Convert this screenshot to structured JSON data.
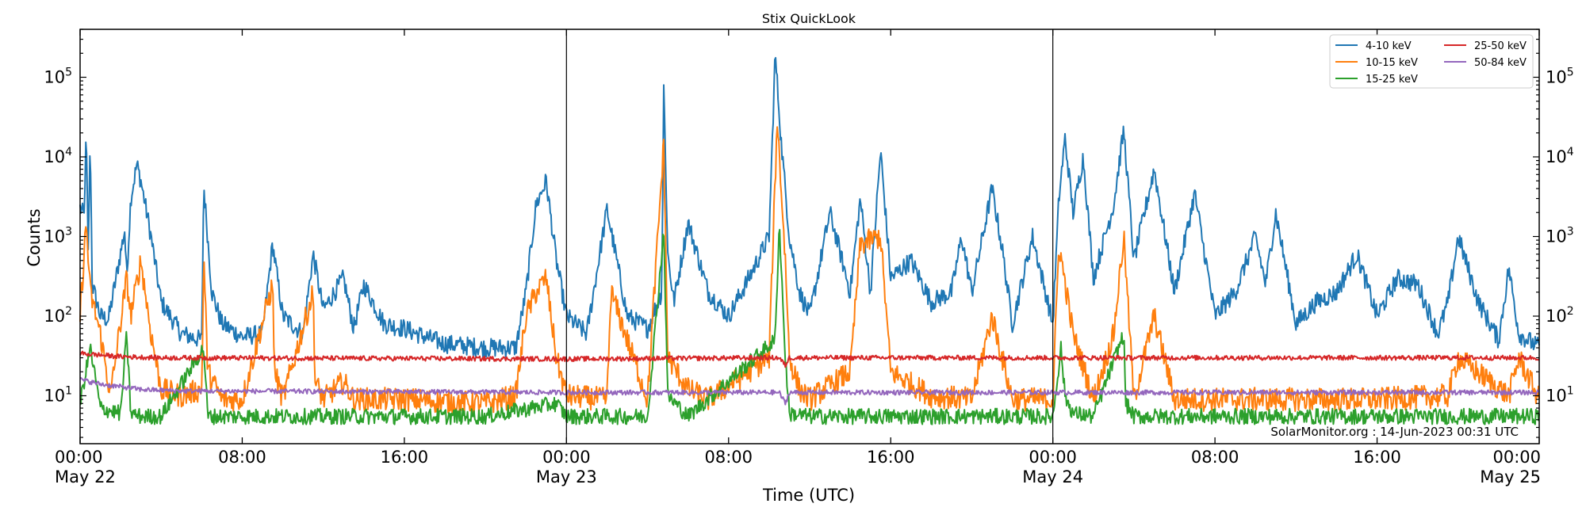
{
  "chart_data": {
    "type": "line",
    "title": "Stix QuickLook",
    "xlabel": "Time (UTC)",
    "ylabel": "Counts",
    "yscale": "log",
    "ylim": [
      2.5,
      400000
    ],
    "xlim_hours": [
      0,
      72
    ],
    "x_ticks": [
      {
        "hour": 0,
        "time": "00:00",
        "date": "May 22"
      },
      {
        "hour": 8,
        "time": "08:00",
        "date": ""
      },
      {
        "hour": 16,
        "time": "16:00",
        "date": ""
      },
      {
        "hour": 24,
        "time": "00:00",
        "date": "May 23"
      },
      {
        "hour": 32,
        "time": "08:00",
        "date": ""
      },
      {
        "hour": 40,
        "time": "16:00",
        "date": ""
      },
      {
        "hour": 48,
        "time": "00:00",
        "date": "May 24"
      },
      {
        "hour": 56,
        "time": "08:00",
        "date": ""
      },
      {
        "hour": 64,
        "time": "16:00",
        "date": ""
      },
      {
        "hour": 72,
        "time": "00:00",
        "date": "May 25"
      }
    ],
    "y_ticks": [
      {
        "value": 10,
        "base": "10",
        "exp": "1"
      },
      {
        "value": 100,
        "base": "10",
        "exp": "2"
      },
      {
        "value": 1000,
        "base": "10",
        "exp": "3"
      },
      {
        "value": 10000,
        "base": "10",
        "exp": "4"
      },
      {
        "value": 100000,
        "base": "10",
        "exp": "5"
      }
    ],
    "day_dividers_hours": [
      24,
      48
    ],
    "legend": {
      "placement": "top-right",
      "columns": 2
    },
    "footer_text": "SolarMonitor.org : 14-Jun-2023 00:31 UTC",
    "series": [
      {
        "name": "4-10 keV",
        "color": "#1f77b4",
        "baseline": 55,
        "noise": 0.12,
        "x": [
          0.0,
          0.2,
          0.3,
          0.4,
          0.5,
          0.6,
          1.0,
          1.4,
          2.2,
          2.3,
          2.5,
          2.8,
          3.0,
          3.5,
          4.0,
          5.0,
          6.0,
          6.1,
          6.5,
          7.0,
          8.0,
          9.0,
          9.5,
          10.0,
          11.0,
          11.5,
          12.0,
          13.0,
          13.5,
          14.0,
          15.0,
          16.0,
          17.0,
          18.0,
          20.0,
          21.5,
          22.0,
          22.5,
          23.0,
          23.5,
          24.0,
          25.0,
          26.0,
          27.0,
          28.0,
          28.7,
          28.8,
          29.0,
          29.3,
          30.0,
          31.0,
          32.0,
          33.0,
          34.0,
          34.3,
          34.6,
          35.0,
          35.5,
          36.0,
          37.0,
          38.0,
          38.5,
          39.0,
          39.5,
          40.0,
          41.0,
          42.0,
          43.0,
          43.5,
          44.0,
          45.0,
          45.5,
          46.0,
          47.0,
          48.0,
          48.3,
          48.6,
          49.0,
          49.5,
          50.0,
          51.0,
          51.5,
          52.0,
          53.0,
          54.0,
          55.0,
          56.0,
          57.0,
          58.0,
          58.5,
          59.0,
          60.0,
          61.0,
          62.0,
          63.0,
          64.0,
          65.0,
          66.0,
          67.0,
          67.5,
          68.0,
          69.0,
          70.0,
          70.5,
          71.0,
          72.0
        ],
        "values": [
          2300,
          1800,
          20000,
          600,
          17000,
          250,
          100,
          90,
          1200,
          300,
          3000,
          8000,
          5000,
          1000,
          150,
          60,
          50,
          4500,
          200,
          80,
          55,
          60,
          800,
          100,
          60,
          600,
          120,
          300,
          70,
          250,
          80,
          70,
          55,
          45,
          40,
          40,
          200,
          2500,
          5000,
          500,
          100,
          60,
          2200,
          100,
          70,
          200,
          80000,
          600,
          150,
          1500,
          200,
          100,
          300,
          1000,
          200000,
          15000,
          1000,
          200,
          100,
          2000,
          200,
          3000,
          200,
          12000,
          300,
          500,
          150,
          200,
          1000,
          200,
          4000,
          700,
          80,
          1000,
          80,
          3000,
          17000,
          2000,
          10000,
          300,
          2500,
          22000,
          500,
          7000,
          200,
          3500,
          100,
          200,
          1000,
          250,
          2000,
          80,
          150,
          200,
          600,
          100,
          300,
          250,
          60,
          150,
          1000,
          150,
          50,
          400,
          60,
          40
        ]
      },
      {
        "name": "10-15 keV",
        "color": "#ff7f0e",
        "baseline": 9,
        "noise": 0.15,
        "x": [
          0.0,
          0.3,
          0.5,
          1.0,
          1.5,
          2.3,
          2.5,
          3.0,
          3.5,
          4.0,
          5.0,
          6.0,
          6.1,
          6.3,
          7.0,
          8.0,
          9.5,
          9.6,
          10.0,
          11.5,
          11.6,
          12.0,
          13.0,
          13.5,
          14.0,
          16.0,
          20.0,
          21.5,
          22.0,
          22.5,
          23.0,
          23.5,
          24.0,
          26.0,
          26.2,
          28.0,
          28.8,
          29.0,
          30.0,
          31.0,
          34.0,
          34.4,
          34.8,
          35.0,
          35.5,
          36.0,
          38.0,
          38.5,
          39.5,
          40.0,
          42.0,
          44.0,
          45.0,
          46.0,
          48.0,
          48.3,
          49.0,
          50.0,
          51.0,
          51.5,
          52.0,
          53.0,
          54.0,
          56.0,
          60.0,
          64.0,
          67.5,
          68.0,
          70.5,
          71.0,
          72.0
        ],
        "values": [
          100,
          1500,
          200,
          60,
          10,
          300,
          100,
          500,
          60,
          12,
          10,
          12,
          600,
          20,
          9,
          9,
          250,
          20,
          9,
          200,
          15,
          9,
          15,
          9,
          9,
          9,
          8,
          10,
          100,
          200,
          300,
          30,
          10,
          9,
          200,
          9,
          15000,
          30,
          12,
          9,
          30,
          30000,
          500,
          30,
          12,
          9,
          20,
          800,
          1000,
          20,
          10,
          9,
          100,
          9,
          9,
          800,
          60,
          9,
          60,
          1000,
          9,
          100,
          9,
          9,
          9,
          9,
          10,
          30,
          10,
          30,
          9
        ]
      },
      {
        "name": "15-25 keV",
        "color": "#2ca02c",
        "baseline": 5.5,
        "noise": 0.1,
        "x": [
          0.0,
          0.5,
          1.0,
          2.0,
          2.3,
          2.5,
          3.0,
          4.0,
          6.1,
          6.3,
          8.0,
          12.0,
          16.0,
          20.0,
          23.5,
          24.0,
          28.0,
          28.8,
          29.0,
          30.0,
          34.3,
          34.5,
          34.8,
          35.0,
          36.0,
          40.0,
          44.0,
          48.0,
          48.4,
          48.6,
          49.0,
          50.0,
          51.5,
          51.6,
          52.0,
          56.0,
          60.0,
          64.0,
          72.0
        ],
        "values": [
          8,
          40,
          7,
          6,
          60,
          6,
          5.5,
          5.5,
          40,
          5.5,
          5.5,
          5.5,
          5.5,
          5.5,
          8,
          5.5,
          5.5,
          1200,
          10,
          5.5,
          50,
          1500,
          30,
          6,
          5.5,
          5.5,
          5.5,
          5.5,
          40,
          10,
          6,
          5.5,
          60,
          8,
          5.5,
          5.5,
          5.5,
          5.5,
          5.5
        ]
      },
      {
        "name": "25-50 keV",
        "color": "#d62728",
        "baseline": 30,
        "noise": 0.03,
        "x": [
          0,
          2,
          4,
          24,
          34.5,
          34.8,
          35.0,
          35.5,
          72
        ],
        "values": [
          34,
          31,
          30,
          29,
          30,
          24,
          30,
          30,
          30
        ]
      },
      {
        "name": "50-84 keV",
        "color": "#9467bd",
        "baseline": 11,
        "noise": 0.03,
        "x": [
          0,
          1,
          3,
          5,
          24,
          34.5,
          34.8,
          35.0,
          35.5,
          72
        ],
        "values": [
          16,
          14,
          12,
          11.5,
          11,
          11,
          8,
          11,
          11,
          11
        ]
      }
    ]
  }
}
